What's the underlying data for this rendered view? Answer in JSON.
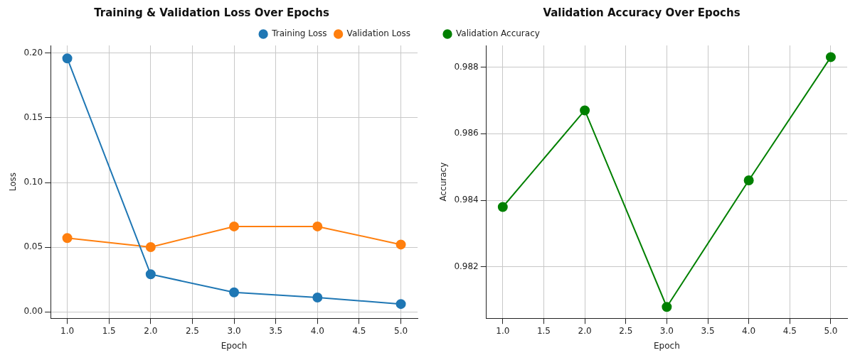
{
  "chart_data": [
    {
      "type": "line",
      "title": "Training & Validation Loss Over Epochs",
      "xlabel": "Epoch",
      "ylabel": "Loss",
      "x": [
        1,
        2,
        3,
        4,
        5
      ],
      "series": [
        {
          "name": "Training Loss",
          "color": "#1f77b4",
          "values": [
            0.196,
            0.029,
            0.015,
            0.011,
            0.006
          ]
        },
        {
          "name": "Validation Loss",
          "color": "#ff7f0e",
          "values": [
            0.057,
            0.05,
            0.066,
            0.066,
            0.052
          ]
        }
      ],
      "xlim": [
        0.8,
        5.2
      ],
      "xticks": [
        {
          "value": 1,
          "label": "1.0"
        },
        1.5,
        {
          "value": 2,
          "label": "2.0"
        },
        2.5,
        {
          "value": 3,
          "label": "3.0"
        },
        3.5,
        {
          "value": 4,
          "label": "4.0"
        },
        4.5,
        {
          "value": 5,
          "label": "5.0"
        }
      ],
      "ylim": [
        -0.005,
        0.206
      ],
      "yticks": [
        {
          "value": 0,
          "label": "0.00"
        },
        0.05,
        {
          "value": 0.1,
          "label": "0.10"
        },
        0.15,
        {
          "value": 0.2,
          "label": "0.20"
        }
      ],
      "grid": true,
      "legend": "top right",
      "marker": "circle",
      "line_style": "solid"
    },
    {
      "type": "line",
      "title": "Validation Accuracy Over Epochs",
      "xlabel": "Epoch",
      "ylabel": "Accuracy",
      "x": [
        1,
        2,
        3,
        4,
        5
      ],
      "series": [
        {
          "name": "Validation Accuracy",
          "color": "#008000",
          "values": [
            0.9838,
            0.9867,
            0.9808,
            0.9846,
            0.9883
          ]
        }
      ],
      "xlim": [
        0.8,
        5.2
      ],
      "xticks": [
        {
          "value": 1,
          "label": "1.0"
        },
        1.5,
        {
          "value": 2,
          "label": "2.0"
        },
        2.5,
        {
          "value": 3,
          "label": "3.0"
        },
        3.5,
        {
          "value": 4,
          "label": "4.0"
        },
        4.5,
        {
          "value": 5,
          "label": "5.0"
        }
      ],
      "ylim": [
        0.98046,
        0.98865
      ],
      "yticks": [
        0.982,
        0.984,
        0.986,
        0.988
      ],
      "grid": true,
      "legend": "top left",
      "marker": "circle",
      "line_style": "solid"
    }
  ]
}
